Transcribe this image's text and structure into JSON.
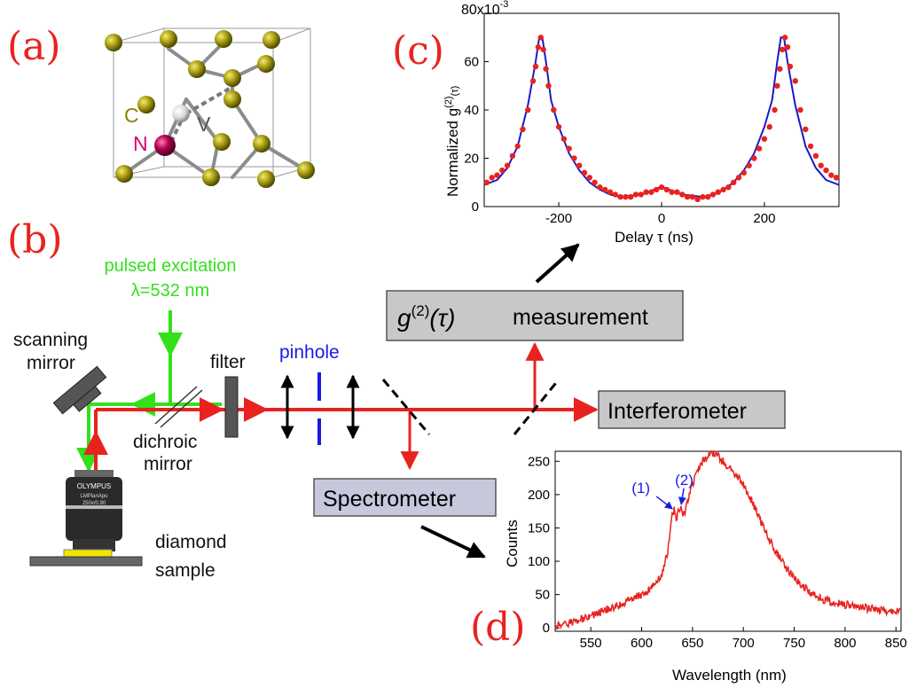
{
  "panels": {
    "a": "(a)",
    "b": "(b)",
    "c": "(c)",
    "d": "(d)"
  },
  "crystal": {
    "carbon": "C",
    "nitrogen": "N",
    "vacancy": "V"
  },
  "setup": {
    "excitation_line1": "pulsed excitation",
    "excitation_line2": "λ=532 nm",
    "scanning_mirror_line1": "scanning",
    "scanning_mirror_line2": "mirror",
    "filter": "filter",
    "pinhole": "pinhole",
    "dichroic_line1": "dichroic",
    "dichroic_line2": "mirror",
    "sample_line1": "diamond",
    "sample_line2": "sample",
    "g2_box_label": "measurement",
    "interferometer_box": "Interferometer",
    "spectrometer_box": "Spectrometer",
    "objective_brand": "OLYMPUS",
    "objective_model": "LMPlanApo",
    "objective_spec": "250x/0.90"
  },
  "colors": {
    "laser_red": "#e8231f",
    "laser_green": "#33e01a",
    "pinhole_blue": "#1a1ae6",
    "panel_label": "#e8231f",
    "carbon_atom": "#8a8200",
    "nitrogen_atom": "#b0004f"
  },
  "chart_data": [
    {
      "type": "scatter",
      "title": "",
      "xlabel": "Delay τ (ns)",
      "ylabel": "Normalized g(2)(τ)",
      "ylabel_main": "Normalized g",
      "ylabel_sup": "(2)",
      "ylabel_sub": "(τ)",
      "scale_label_base": "80x10",
      "scale_label_exp": "-3",
      "xlim": [
        -345,
        345
      ],
      "ylim": [
        0,
        80
      ],
      "xticks": [
        "-200",
        "0",
        "200"
      ],
      "yticks": [
        "0",
        "20",
        "40",
        "60"
      ],
      "grid": false,
      "series": [
        {
          "style": "fit line",
          "color": "#1a1ac8",
          "x": [
            -345,
            -320,
            -300,
            -280,
            -260,
            -245,
            -238,
            -232,
            -225,
            -215,
            -200,
            -180,
            -160,
            -140,
            -120,
            -100,
            -80,
            -60,
            -40,
            -20,
            -10,
            0,
            10,
            20,
            40,
            60,
            80,
            100,
            120,
            140,
            160,
            180,
            200,
            215,
            225,
            232,
            238,
            245,
            260,
            280,
            300,
            320,
            345
          ],
          "y": [
            9,
            11,
            16,
            25,
            42,
            60,
            70,
            70,
            60,
            44,
            33,
            22,
            15,
            10,
            7,
            5,
            4,
            4.5,
            5,
            6.5,
            7.5,
            8,
            7.5,
            6.5,
            5,
            4.5,
            4,
            5,
            7,
            10,
            15,
            22,
            33,
            44,
            60,
            70,
            70,
            60,
            42,
            25,
            16,
            11,
            9
          ]
        },
        {
          "style": "data points",
          "color": "#e8231f",
          "x": [
            -340,
            -330,
            -320,
            -310,
            -300,
            -290,
            -280,
            -270,
            -260,
            -250,
            -245,
            -240,
            -235,
            -230,
            -225,
            -220,
            -210,
            -200,
            -190,
            -180,
            -170,
            -160,
            -150,
            -140,
            -130,
            -120,
            -110,
            -100,
            -90,
            -80,
            -70,
            -60,
            -50,
            -40,
            -30,
            -20,
            -10,
            0,
            10,
            20,
            30,
            40,
            50,
            60,
            70,
            80,
            90,
            100,
            110,
            120,
            130,
            140,
            150,
            160,
            170,
            180,
            190,
            200,
            210,
            220,
            225,
            230,
            235,
            240,
            245,
            250,
            260,
            270,
            280,
            290,
            300,
            310,
            320,
            330,
            340
          ],
          "y": [
            10,
            12,
            13,
            15,
            17,
            21,
            25,
            32,
            40,
            52,
            58,
            66,
            70,
            65,
            57,
            50,
            40,
            33,
            28,
            24,
            20,
            17,
            14,
            12,
            10,
            8,
            7,
            6,
            5,
            4,
            4,
            4,
            5,
            5,
            6,
            6,
            7,
            8,
            7,
            6,
            6,
            5,
            4,
            4,
            3,
            4,
            4,
            5,
            6,
            7,
            8,
            10,
            12,
            14,
            17,
            20,
            24,
            28,
            33,
            40,
            50,
            57,
            65,
            70,
            66,
            58,
            52,
            40,
            32,
            25,
            21,
            17,
            15,
            13,
            12
          ]
        }
      ]
    },
    {
      "type": "line",
      "title": "",
      "xlabel": "Wavelength (nm)",
      "ylabel": "Counts",
      "xlim": [
        515,
        855
      ],
      "ylim": [
        -5,
        265
      ],
      "xticks": [
        "550",
        "600",
        "650",
        "700",
        "750",
        "800",
        "850"
      ],
      "yticks": [
        "0",
        "50",
        "100",
        "150",
        "200",
        "250"
      ],
      "annotations": [
        {
          "text": "(1)",
          "x": 632,
          "y": 176
        },
        {
          "text": "(2)",
          "x": 638,
          "y": 180
        }
      ],
      "series": [
        {
          "color": "#e8231f",
          "x": [
            515,
            520,
            530,
            540,
            550,
            555,
            560,
            570,
            580,
            590,
            600,
            605,
            610,
            615,
            620,
            625,
            628,
            630,
            632,
            634,
            636,
            638,
            640,
            642,
            645,
            650,
            655,
            660,
            665,
            668,
            670,
            672,
            675,
            680,
            690,
            700,
            710,
            720,
            730,
            740,
            750,
            760,
            770,
            780,
            790,
            800,
            810,
            820,
            830,
            840,
            850,
            855
          ],
          "y": [
            3,
            5,
            8,
            12,
            18,
            20,
            24,
            30,
            36,
            42,
            50,
            55,
            62,
            70,
            82,
            110,
            140,
            170,
            176,
            160,
            175,
            180,
            175,
            168,
            190,
            215,
            235,
            250,
            258,
            262,
            260,
            262,
            258,
            250,
            235,
            215,
            185,
            150,
            120,
            95,
            75,
            60,
            50,
            42,
            38,
            35,
            32,
            30,
            28,
            26,
            25,
            24
          ]
        }
      ]
    }
  ]
}
